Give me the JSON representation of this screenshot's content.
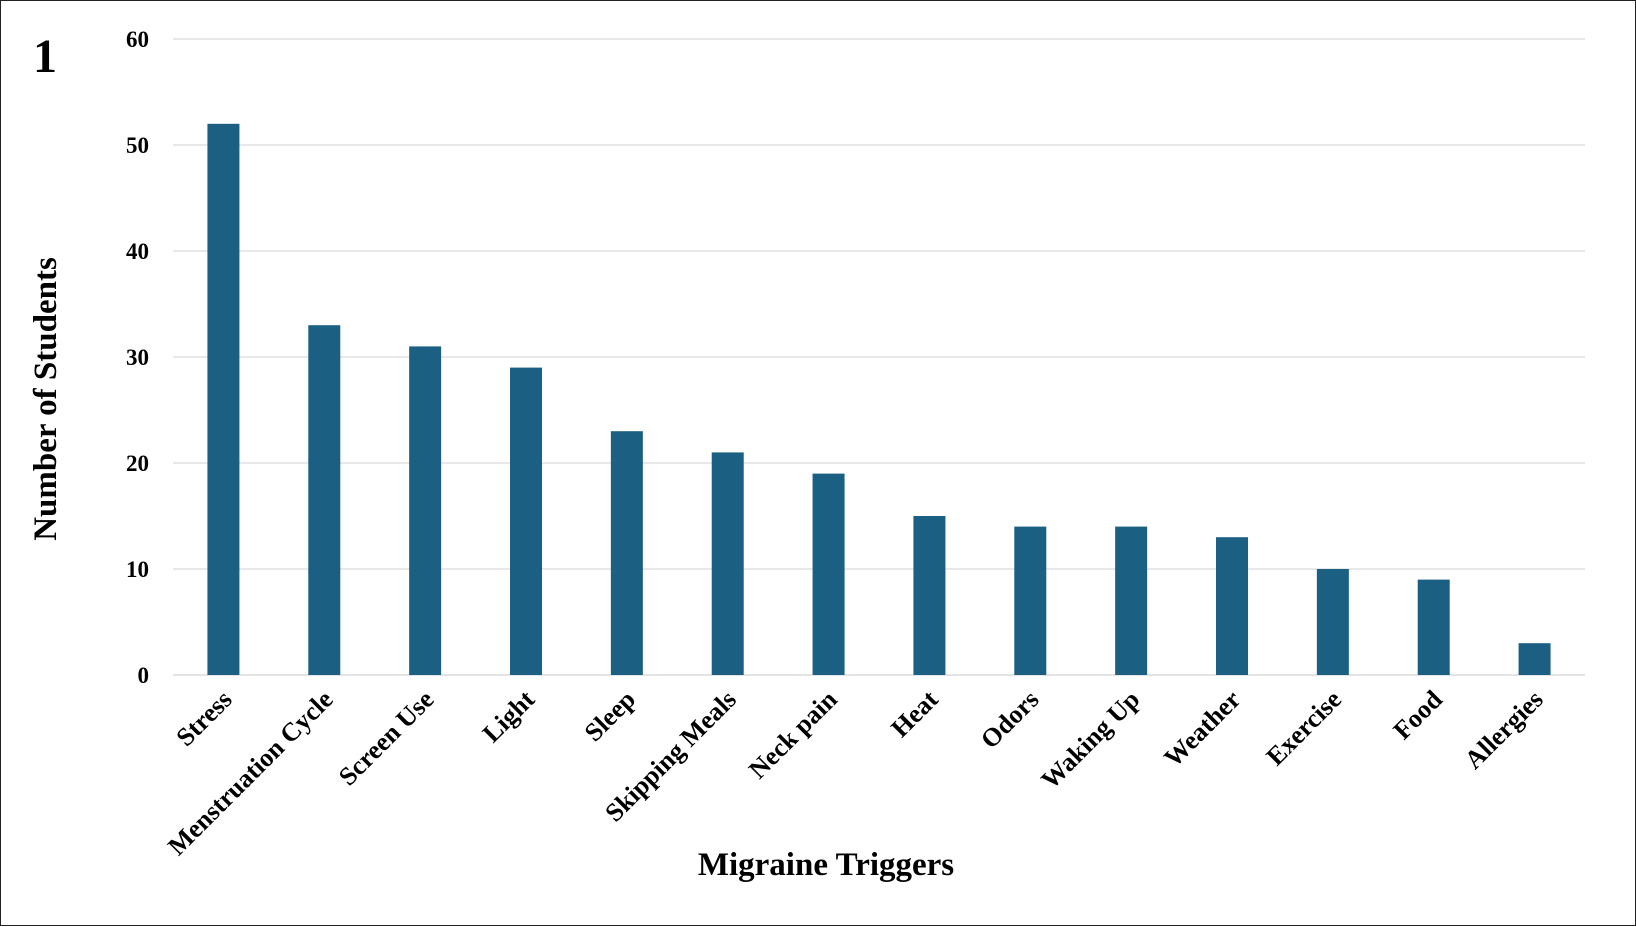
{
  "panel_label": "1",
  "chart_data": {
    "type": "bar",
    "xlabel": "Migraine Triggers",
    "ylabel": "Number of Students",
    "categories": [
      "Stress",
      "Menstruation Cycle",
      "Screen Use",
      "Light",
      "Sleep",
      "Skipping Meals",
      "Neck pain",
      "Heat",
      "Odors",
      "Waking Up",
      "Weather",
      "Exercise",
      "Food",
      "Allergies"
    ],
    "series": [
      {
        "values": [
          52,
          33,
          31,
          29,
          23,
          21,
          19,
          15,
          14,
          14,
          13,
          10,
          9,
          3
        ]
      }
    ],
    "ylim": [
      0,
      60
    ],
    "yticks": [
      0,
      10,
      20,
      30,
      40,
      50,
      60
    ],
    "grid": true,
    "legend": "none",
    "bar_color": "#1b6083",
    "grid_color": "#d9d9d9"
  }
}
